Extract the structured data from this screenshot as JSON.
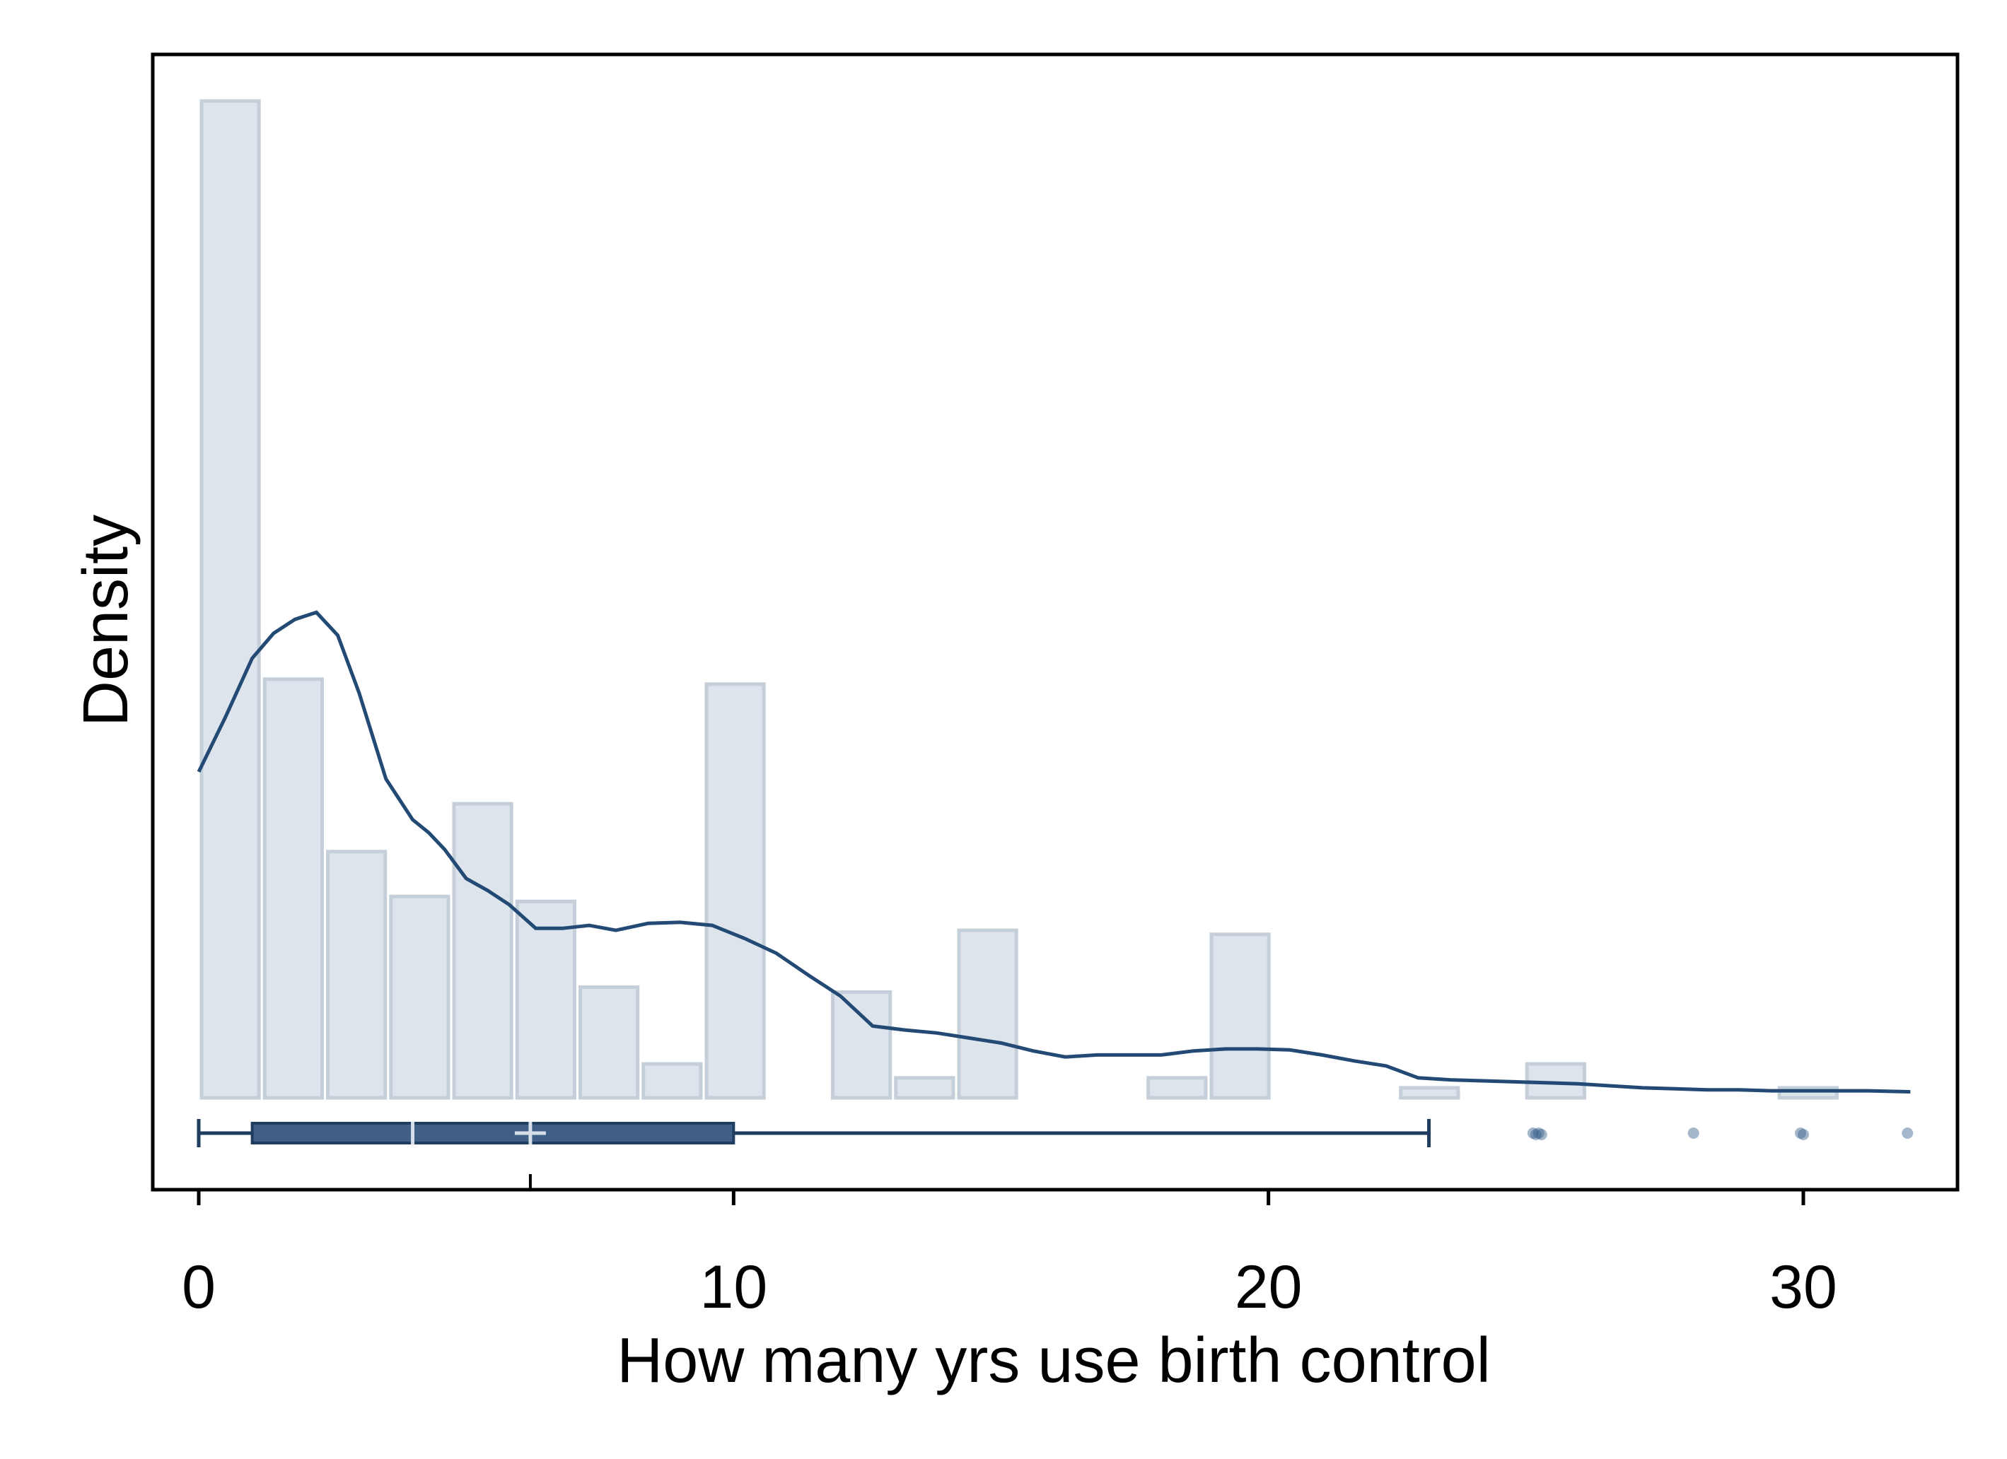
{
  "chart_data": {
    "type": "histogram",
    "xlabel": "How many yrs use birth control",
    "ylabel": "Density",
    "xlim": [
      -0.8,
      32.6
    ],
    "x_ticks": [
      0,
      10,
      20,
      30
    ],
    "x_tick_labels": [
      "0",
      "10",
      "20",
      "30"
    ],
    "y_ticks": [],
    "bin_width": 1.18,
    "histogram": {
      "bins": [
        {
          "start": 0.0,
          "end": 1.18,
          "density": 1.0
        },
        {
          "start": 1.18,
          "end": 2.36,
          "density": 0.42
        },
        {
          "start": 2.36,
          "end": 3.54,
          "density": 0.247
        },
        {
          "start": 3.54,
          "end": 4.72,
          "density": 0.202
        },
        {
          "start": 4.72,
          "end": 5.9,
          "density": 0.295
        },
        {
          "start": 5.9,
          "end": 7.08,
          "density": 0.197
        },
        {
          "start": 7.08,
          "end": 8.26,
          "density": 0.111
        },
        {
          "start": 8.26,
          "end": 9.44,
          "density": 0.034
        },
        {
          "start": 9.44,
          "end": 10.62,
          "density": 0.415
        },
        {
          "start": 10.62,
          "end": 11.8,
          "density": 0.0
        },
        {
          "start": 11.8,
          "end": 12.98,
          "density": 0.106
        },
        {
          "start": 12.98,
          "end": 14.16,
          "density": 0.02
        },
        {
          "start": 14.16,
          "end": 15.34,
          "density": 0.168
        },
        {
          "start": 15.34,
          "end": 16.52,
          "density": 0.0
        },
        {
          "start": 17.7,
          "end": 18.88,
          "density": 0.02
        },
        {
          "start": 18.88,
          "end": 20.06,
          "density": 0.164
        },
        {
          "start": 20.06,
          "end": 21.24,
          "density": 0.0
        },
        {
          "start": 21.24,
          "end": 22.42,
          "density": 0.0
        },
        {
          "start": 22.42,
          "end": 23.6,
          "density": 0.01
        },
        {
          "start": 24.78,
          "end": 25.96,
          "density": 0.034
        },
        {
          "start": 27.14,
          "end": 28.32,
          "density": 0.0
        },
        {
          "start": 29.5,
          "end": 30.68,
          "density": 0.01
        }
      ]
    },
    "kde": {
      "x": [
        0,
        0.5,
        1.0,
        1.4,
        1.8,
        2.2,
        2.6,
        3.0,
        3.5,
        4.0,
        4.3,
        4.6,
        5.0,
        5.4,
        5.8,
        6.3,
        6.8,
        7.3,
        7.8,
        8.4,
        9.0,
        9.6,
        10.2,
        10.8,
        11.4,
        12.0,
        12.6,
        13.2,
        13.8,
        14.4,
        15.0,
        15.6,
        16.2,
        16.8,
        17.4,
        18.0,
        18.6,
        19.2,
        19.8,
        20.4,
        21.0,
        21.6,
        22.2,
        22.8,
        23.4,
        24.0,
        24.6,
        25.2,
        25.8,
        26.4,
        27.0,
        27.6,
        28.2,
        28.8,
        29.4,
        30.0,
        30.6,
        31.2,
        32.0
      ],
      "y": [
        0.327,
        0.382,
        0.441,
        0.466,
        0.48,
        0.487,
        0.464,
        0.406,
        0.32,
        0.279,
        0.266,
        0.249,
        0.22,
        0.208,
        0.194,
        0.17,
        0.17,
        0.173,
        0.168,
        0.175,
        0.176,
        0.173,
        0.16,
        0.145,
        0.123,
        0.102,
        0.072,
        0.068,
        0.065,
        0.06,
        0.055,
        0.047,
        0.041,
        0.043,
        0.043,
        0.043,
        0.047,
        0.049,
        0.049,
        0.048,
        0.043,
        0.037,
        0.032,
        0.02,
        0.018,
        0.017,
        0.016,
        0.015,
        0.014,
        0.012,
        0.01,
        0.009,
        0.008,
        0.008,
        0.007,
        0.007,
        0.007,
        0.007,
        0.006
      ]
    },
    "boxplot": {
      "whisker_low": 0,
      "q1": 1,
      "median": 4,
      "mean": 6.2,
      "q3": 10,
      "whisker_high": 23,
      "outliers": [
        25,
        25,
        25,
        25,
        28,
        30,
        30,
        32
      ]
    },
    "legend": "none",
    "grid": false
  },
  "colors": {
    "bar_fill": "#dde4ec",
    "bar_stroke": "#c4cfda",
    "kde_line": "#234a74",
    "box_fill": "#3f5f86",
    "box_stroke": "#1e3d5f",
    "outlier": "#385f8a",
    "frame": "#000000"
  }
}
